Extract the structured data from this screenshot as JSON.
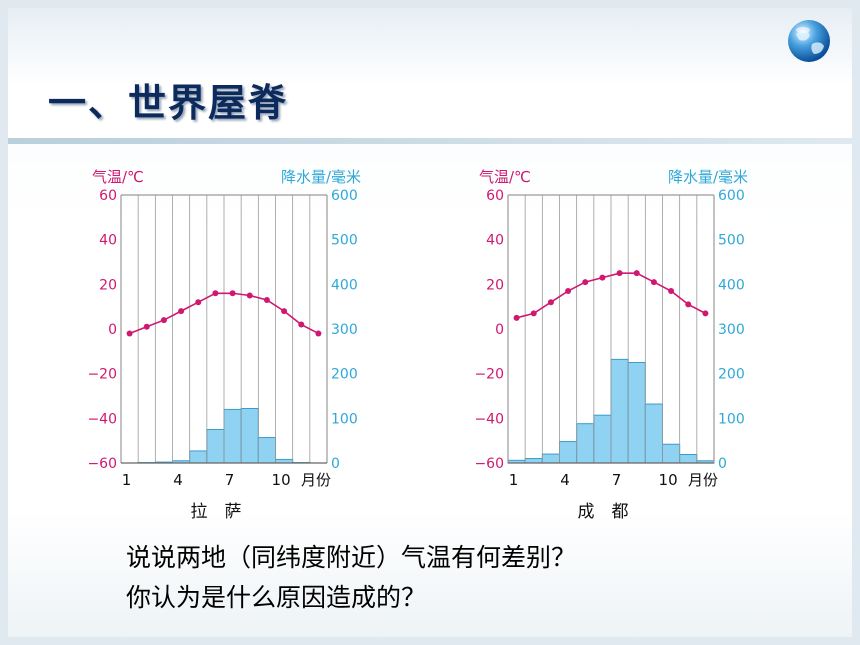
{
  "slide": {
    "title": "一、世界屋脊",
    "questions": [
      "说说两地（同纬度附近）气温有何差别？",
      "你认为是什么原因造成的？"
    ]
  },
  "colors": {
    "temperature": "#d01870",
    "precipitation": "#2fa8d8",
    "bar_fill": "#8fd2f2",
    "bar_stroke": "#3a9ccc",
    "grid": "#9a9a9a",
    "title": "#0d2a5c"
  },
  "icons": {
    "logo": "globe-icon"
  },
  "chart_data": [
    {
      "type": "bar+line",
      "xlabel": "拉　萨",
      "left_axis_label": "气温/℃",
      "right_axis_label": "降水量/毫米",
      "x_unit_label": "月份",
      "x_ticks": [
        "1",
        "4",
        "7",
        "10"
      ],
      "x_tick_months": [
        1,
        4,
        7,
        10
      ],
      "months": [
        1,
        2,
        3,
        4,
        5,
        6,
        7,
        8,
        9,
        10,
        11,
        12
      ],
      "temperature_ylim": [
        -60,
        60
      ],
      "temperature_ticks": [
        "60",
        "40",
        "20",
        "0",
        "−20",
        "−40",
        "−60"
      ],
      "precipitation_ylim": [
        0,
        600
      ],
      "precipitation_ticks": [
        "600",
        "500",
        "400",
        "300",
        "200",
        "100",
        "0"
      ],
      "series": [
        {
          "name": "气温",
          "kind": "line",
          "axis": "left",
          "values": [
            -2,
            1,
            4,
            8,
            12,
            16,
            16,
            15,
            13,
            8,
            2,
            -2
          ]
        },
        {
          "name": "降水量",
          "kind": "bar",
          "axis": "right",
          "values": [
            0,
            1,
            2,
            5,
            27,
            75,
            120,
            122,
            57,
            8,
            1,
            0
          ]
        }
      ]
    },
    {
      "type": "bar+line",
      "xlabel": "成　都",
      "left_axis_label": "气温/℃",
      "right_axis_label": "降水量/毫米",
      "x_unit_label": "月份",
      "x_ticks": [
        "1",
        "4",
        "7",
        "10"
      ],
      "x_tick_months": [
        1,
        4,
        7,
        10
      ],
      "months": [
        1,
        2,
        3,
        4,
        5,
        6,
        7,
        8,
        9,
        10,
        11,
        12
      ],
      "temperature_ylim": [
        -60,
        60
      ],
      "temperature_ticks": [
        "60",
        "40",
        "20",
        "0",
        "−20",
        "−40",
        "−60"
      ],
      "precipitation_ylim": [
        0,
        600
      ],
      "precipitation_ticks": [
        "600",
        "500",
        "400",
        "300",
        "200",
        "100",
        "0"
      ],
      "series": [
        {
          "name": "气温",
          "kind": "line",
          "axis": "left",
          "values": [
            5,
            7,
            12,
            17,
            21,
            23,
            25,
            25,
            21,
            17,
            11,
            7
          ]
        },
        {
          "name": "降水量",
          "kind": "bar",
          "axis": "right",
          "values": [
            6,
            10,
            20,
            48,
            88,
            107,
            232,
            225,
            132,
            42,
            19,
            5
          ]
        }
      ]
    }
  ]
}
